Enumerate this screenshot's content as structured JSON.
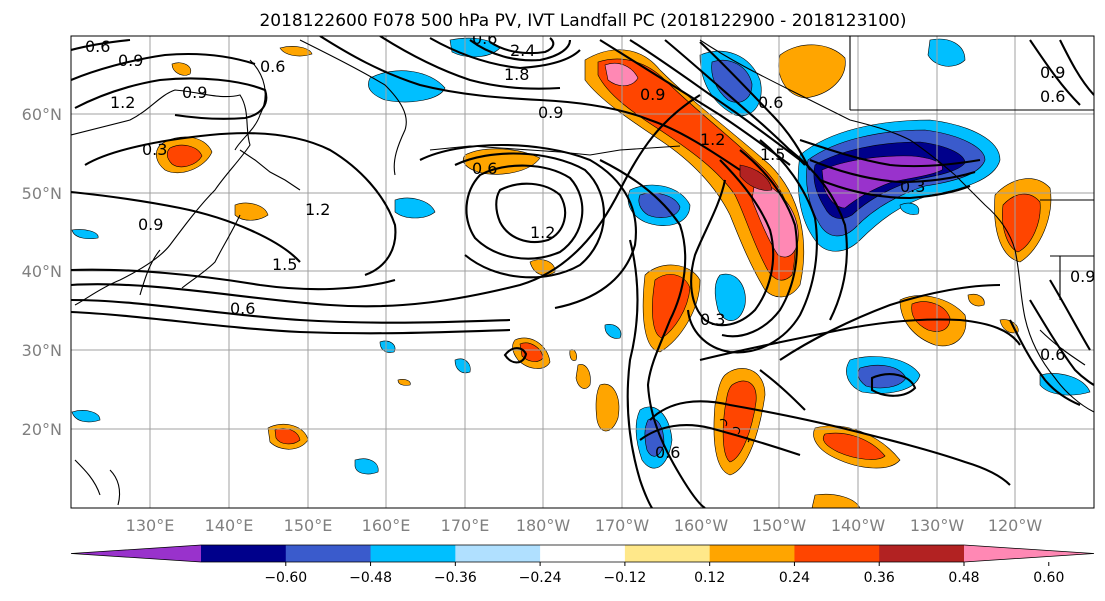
{
  "title": "2018122600 F078 500 hPa PV, IVT Landfall PC (2018122900 - 2018123100)",
  "lat_labels": [
    "60°N",
    "50°N",
    "40°N",
    "30°N",
    "20°N"
  ],
  "lon_labels": [
    "130°E",
    "140°E",
    "150°E",
    "160°E",
    "170°E",
    "180°W",
    "170°W",
    "160°W",
    "150°W",
    "140°W",
    "130°W",
    "120°W"
  ],
  "colorbar": {
    "colors": [
      "#9932cc",
      "#00008b",
      "#3a5bcc",
      "#00bfff",
      "#b0e0ff",
      "#ffffff",
      "#ffe88a",
      "#ffa500",
      "#ff4500",
      "#b22222",
      "#ff88b4"
    ],
    "tick_labels": [
      "-0.60",
      "-0.48",
      "-0.36",
      "-0.24",
      "-0.12",
      "0.12",
      "0.24",
      "0.36",
      "0.48",
      "0.60"
    ]
  },
  "contour_labels": [
    "0.6",
    "0.9",
    "1.2",
    "0.9",
    "0.6",
    "0.3",
    "0.9",
    "1.2",
    "1.5",
    "0.6",
    "0.6",
    "1.2",
    "0.9",
    "2.4",
    "1.8",
    "0.9",
    "0.6",
    "1.2",
    "1.5",
    "0.3",
    "0.3",
    "0.9",
    "0.6",
    "0.6",
    "0.9",
    "0.6",
    "0.6"
  ]
}
